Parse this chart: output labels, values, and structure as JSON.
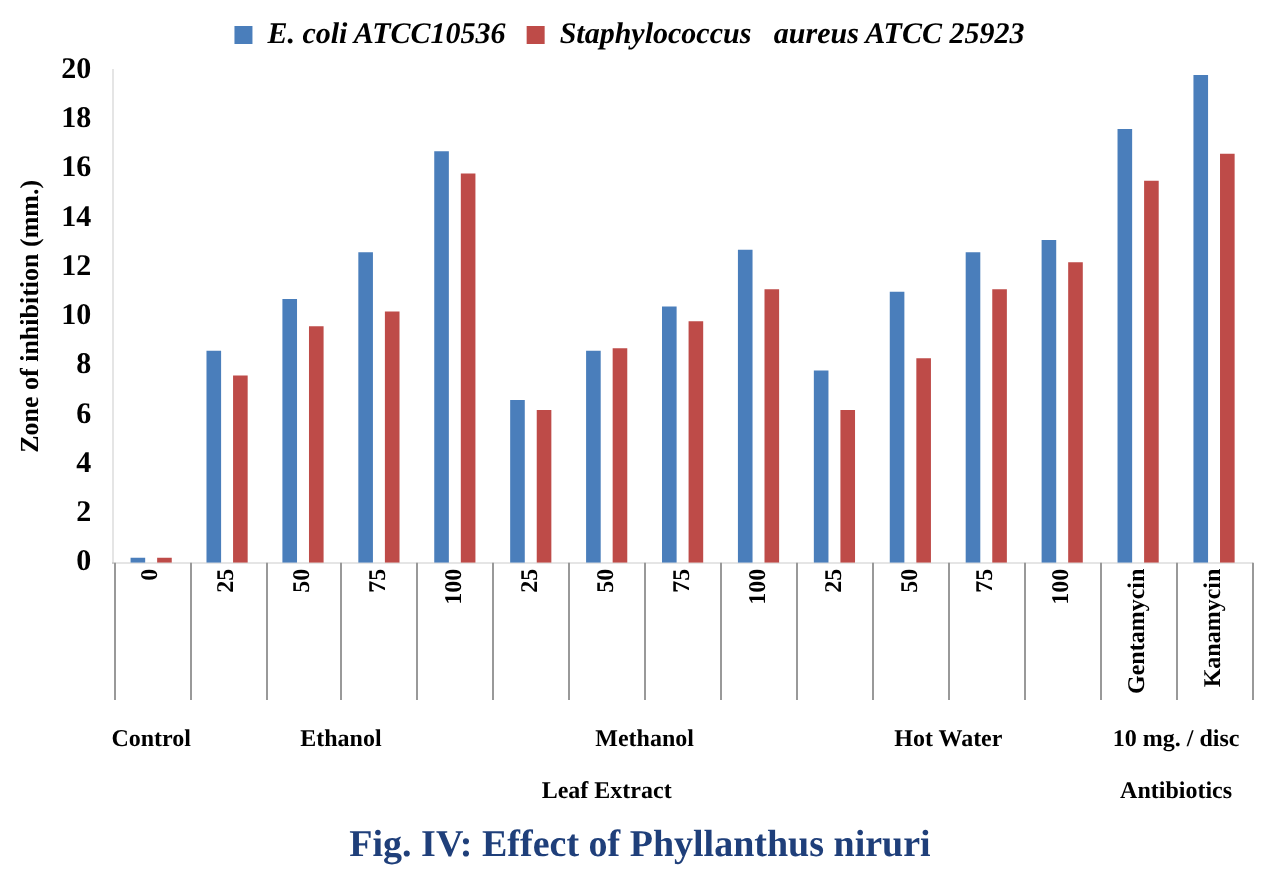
{
  "chart_data": {
    "type": "bar",
    "title": "Fig. IV: Effect  of Phyllanthus niruri",
    "ylabel": "Zone of inhibition (mm.)",
    "categories": [
      "0",
      "25",
      "50",
      "75",
      "100",
      "25",
      "50",
      "75",
      "100",
      "25",
      "50",
      "75",
      "100",
      "Gentamycin",
      "Kanamycin"
    ],
    "series": [
      {
        "name": "E. coli ATCC10536",
        "color": "#4a7ebb",
        "values": [
          0.2,
          8.6,
          10.7,
          12.6,
          16.7,
          6.6,
          8.6,
          10.4,
          12.7,
          7.8,
          11.0,
          12.6,
          13.1,
          17.6,
          19.8
        ]
      },
      {
        "name": "Staphylococcus   aureus ATCC 25923",
        "color": "#be4b48",
        "values": [
          0.2,
          7.6,
          9.6,
          10.2,
          15.8,
          6.2,
          8.7,
          9.8,
          11.1,
          6.2,
          8.3,
          11.1,
          12.2,
          15.5,
          16.6
        ]
      }
    ],
    "ylim": [
      0,
      20
    ],
    "yticks": [
      0,
      2,
      4,
      6,
      8,
      10,
      12,
      14,
      16,
      18,
      20
    ],
    "grid": false,
    "legend": "top",
    "annotations": [
      "Control",
      "Ethanol",
      "Methanol",
      "Hot Water",
      "10 mg. / disc",
      "Leaf Extract",
      "Antibiotics"
    ]
  }
}
